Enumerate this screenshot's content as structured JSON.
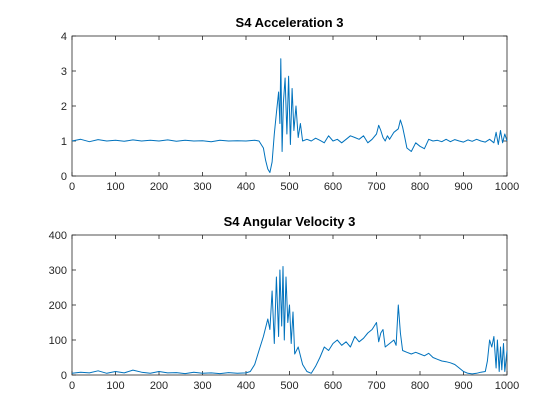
{
  "chart_data": [
    {
      "type": "line",
      "title": "S4 Acceleration 3",
      "xlabel": "",
      "ylabel": "",
      "xlim": [
        0,
        1000
      ],
      "ylim": [
        0,
        4
      ],
      "xticks": [
        0,
        100,
        200,
        300,
        400,
        500,
        600,
        700,
        800,
        900,
        1000
      ],
      "yticks": [
        0,
        1,
        2,
        3,
        4
      ],
      "grid": false,
      "color": "#0072BD",
      "series": [
        {
          "x": [
            0,
            20,
            40,
            60,
            80,
            100,
            120,
            140,
            160,
            180,
            200,
            220,
            240,
            260,
            280,
            300,
            320,
            340,
            360,
            380,
            400,
            420,
            430,
            440,
            445,
            450,
            455,
            460,
            465,
            470,
            475,
            478,
            480,
            483,
            486,
            490,
            494,
            498,
            502,
            506,
            510,
            515,
            520,
            525,
            530,
            540,
            550,
            560,
            570,
            580,
            590,
            600,
            610,
            620,
            630,
            640,
            650,
            660,
            670,
            680,
            690,
            700,
            705,
            710,
            715,
            720,
            725,
            730,
            740,
            750,
            755,
            760,
            765,
            770,
            780,
            790,
            800,
            810,
            820,
            830,
            840,
            850,
            860,
            870,
            880,
            890,
            900,
            910,
            920,
            930,
            940,
            950,
            960,
            970,
            975,
            980,
            985,
            990,
            995,
            1000
          ],
          "y": [
            1.0,
            1.05,
            0.98,
            1.04,
            1.0,
            1.02,
            0.99,
            1.03,
            1.0,
            1.02,
            1.0,
            1.03,
            0.99,
            1.02,
            1.0,
            1.01,
            0.98,
            1.02,
            1.0,
            1.01,
            1.0,
            1.02,
            1.0,
            0.8,
            0.45,
            0.2,
            0.1,
            0.4,
            1.2,
            1.8,
            2.4,
            1.5,
            3.35,
            0.7,
            2.1,
            2.8,
            1.2,
            2.85,
            0.9,
            2.5,
            1.3,
            2.0,
            1.1,
            1.5,
            1.0,
            1.05,
            1.0,
            1.08,
            1.02,
            0.95,
            1.15,
            1.0,
            1.05,
            0.95,
            1.05,
            1.15,
            1.1,
            1.05,
            1.15,
            0.95,
            1.05,
            1.2,
            1.45,
            1.3,
            1.1,
            1.0,
            1.15,
            1.05,
            1.25,
            1.35,
            1.6,
            1.4,
            1.1,
            0.8,
            0.7,
            0.95,
            0.85,
            0.78,
            1.05,
            1.0,
            1.02,
            0.98,
            1.05,
            0.98,
            1.04,
            1.0,
            0.97,
            1.03,
            0.99,
            1.05,
            1.0,
            0.97,
            1.05,
            0.95,
            1.25,
            0.9,
            1.3,
            0.95,
            1.2,
            1.0
          ]
        }
      ]
    },
    {
      "type": "line",
      "title": "S4 Angular Velocity 3",
      "xlabel": "",
      "ylabel": "",
      "xlim": [
        0,
        1000
      ],
      "ylim": [
        0,
        400
      ],
      "xticks": [
        0,
        100,
        200,
        300,
        400,
        500,
        600,
        700,
        800,
        900,
        1000
      ],
      "yticks": [
        0,
        100,
        200,
        300,
        400
      ],
      "grid": false,
      "color": "#0072BD",
      "series": [
        {
          "x": [
            0,
            20,
            40,
            60,
            80,
            100,
            120,
            140,
            160,
            180,
            200,
            220,
            240,
            260,
            280,
            300,
            320,
            340,
            360,
            380,
            400,
            410,
            420,
            430,
            440,
            450,
            455,
            460,
            465,
            470,
            475,
            478,
            482,
            485,
            488,
            492,
            496,
            500,
            504,
            508,
            512,
            520,
            530,
            540,
            550,
            560,
            570,
            580,
            590,
            600,
            610,
            620,
            630,
            640,
            650,
            660,
            670,
            680,
            690,
            700,
            705,
            710,
            715,
            720,
            730,
            740,
            745,
            750,
            755,
            760,
            770,
            780,
            790,
            800,
            810,
            820,
            830,
            840,
            850,
            860,
            870,
            880,
            890,
            900,
            910,
            920,
            930,
            940,
            950,
            955,
            960,
            965,
            970,
            975,
            978,
            982,
            985,
            988,
            992,
            995,
            1000
          ],
          "y": [
            5,
            8,
            6,
            12,
            5,
            10,
            6,
            14,
            8,
            5,
            10,
            6,
            7,
            4,
            8,
            5,
            6,
            4,
            7,
            5,
            6,
            10,
            30,
            70,
            110,
            160,
            130,
            240,
            90,
            280,
            110,
            300,
            140,
            310,
            100,
            280,
            150,
            200,
            90,
            180,
            60,
            80,
            30,
            10,
            5,
            25,
            50,
            80,
            70,
            90,
            100,
            85,
            95,
            80,
            110,
            95,
            105,
            120,
            130,
            150,
            95,
            120,
            130,
            80,
            90,
            100,
            85,
            200,
            120,
            70,
            65,
            60,
            65,
            60,
            55,
            62,
            50,
            45,
            40,
            38,
            35,
            30,
            20,
            10,
            5,
            3,
            5,
            8,
            10,
            40,
            100,
            80,
            110,
            20,
            100,
            10,
            80,
            15,
            90,
            10,
            70
          ]
        }
      ]
    }
  ]
}
